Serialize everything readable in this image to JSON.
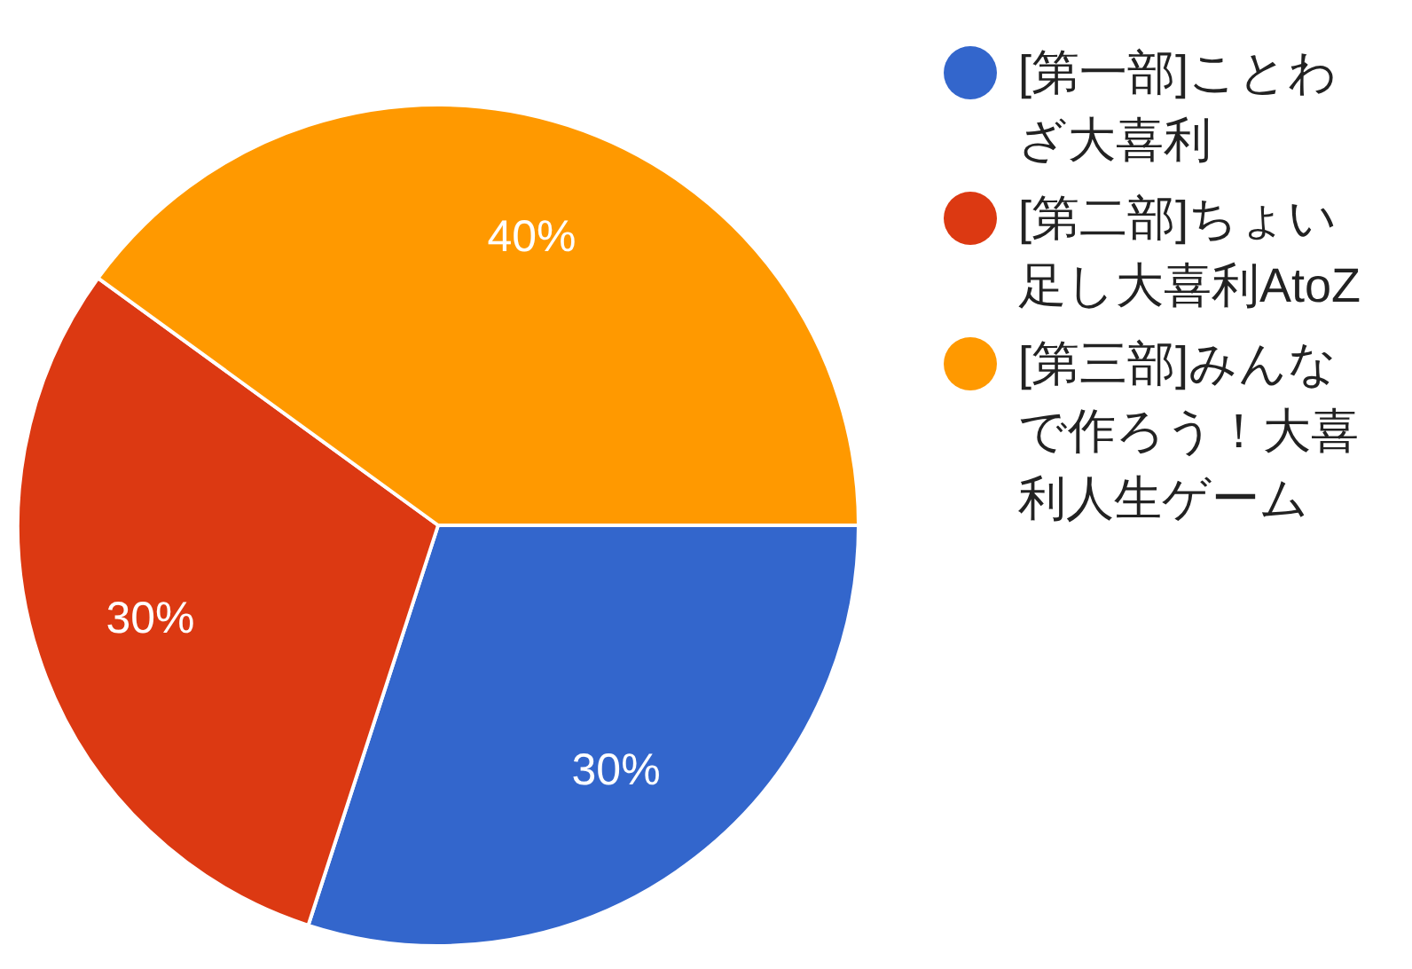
{
  "chart_data": {
    "type": "pie",
    "categories": [
      "[第一部]ことわざ大喜利",
      "[第二部]ちょい足し大喜利AtoZ",
      "[第三部]みんなで作ろう！大喜利人生ゲーム"
    ],
    "values": [
      30,
      30,
      40
    ],
    "colors": [
      "#3366cc",
      "#dc3912",
      "#ff9900"
    ],
    "value_labels": [
      "30%",
      "30%",
      "40%"
    ],
    "legend": "right"
  }
}
